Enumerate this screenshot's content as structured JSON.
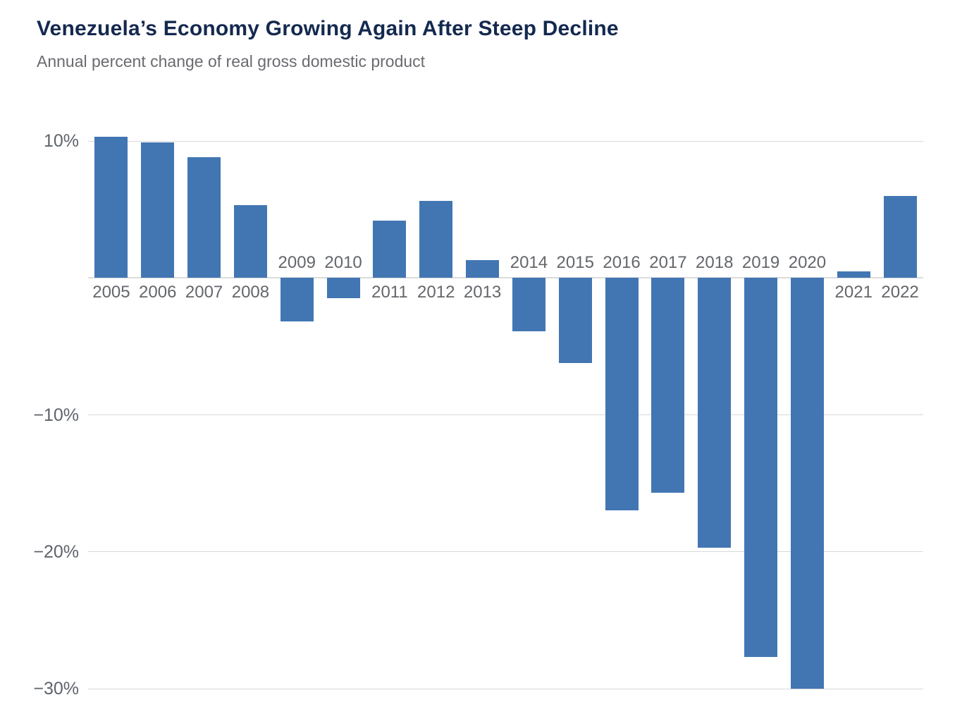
{
  "header": {
    "title": "Venezuela’s Economy Growing Again After Steep Decline",
    "subtitle": "Annual percent change of real gross domestic product"
  },
  "chart_data": {
    "type": "bar",
    "title": "Venezuela’s Economy Growing Again After Steep Decline",
    "subtitle": "Annual percent change of real gross domestic product",
    "categories": [
      "2005",
      "2006",
      "2007",
      "2008",
      "2009",
      "2010",
      "2011",
      "2012",
      "2013",
      "2014",
      "2015",
      "2016",
      "2017",
      "2018",
      "2019",
      "2020",
      "2021",
      "2022"
    ],
    "values": [
      10.3,
      9.9,
      8.8,
      5.3,
      -3.2,
      -1.5,
      4.2,
      5.6,
      1.3,
      -3.9,
      -6.2,
      -17.0,
      -15.7,
      -19.7,
      -27.7,
      -30.0,
      0.5,
      6.0
    ],
    "xlabel": "",
    "ylabel": "",
    "ylim": [
      -31,
      11.5
    ],
    "y_ticks": [
      10,
      -10,
      -20,
      -30
    ],
    "y_tick_labels": [
      "10%",
      "−10%",
      "−20%",
      "−30%"
    ],
    "zero_baseline": true,
    "grid": true,
    "legend": false,
    "bar_color": "#4276B3",
    "gridline_color": "#D9D9D9",
    "title_color": "#14294F",
    "subtitle_color": "#6A6B70",
    "label_color": "#63666B"
  }
}
